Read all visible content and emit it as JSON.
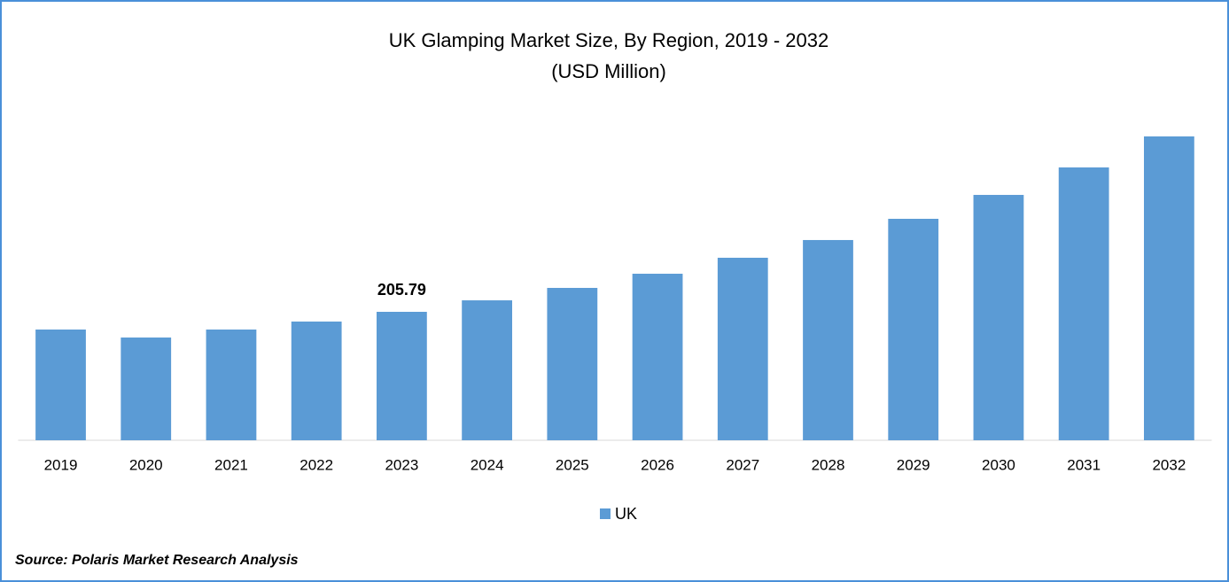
{
  "chart_data": {
    "type": "bar",
    "title": "UK Glamping Market Size, By Region, 2019 - 2032",
    "subtitle": "(USD Million)",
    "categories": [
      "2019",
      "2020",
      "2021",
      "2022",
      "2023",
      "2024",
      "2025",
      "2026",
      "2027",
      "2028",
      "2029",
      "2030",
      "2031",
      "2032"
    ],
    "series": [
      {
        "name": "UK",
        "color": "#5b9bd5",
        "values": [
          177.4,
          164.6,
          177.4,
          190.2,
          205.79,
          224.2,
          244.1,
          266.8,
          292.4,
          320.8,
          354.8,
          393.1,
          437.1,
          486.8
        ],
        "value_labels": [
          null,
          null,
          null,
          null,
          "205.79",
          null,
          null,
          null,
          null,
          null,
          null,
          null,
          null,
          null
        ]
      }
    ],
    "legend": "bottom",
    "source": "Source: Polaris Market Research Analysis"
  }
}
